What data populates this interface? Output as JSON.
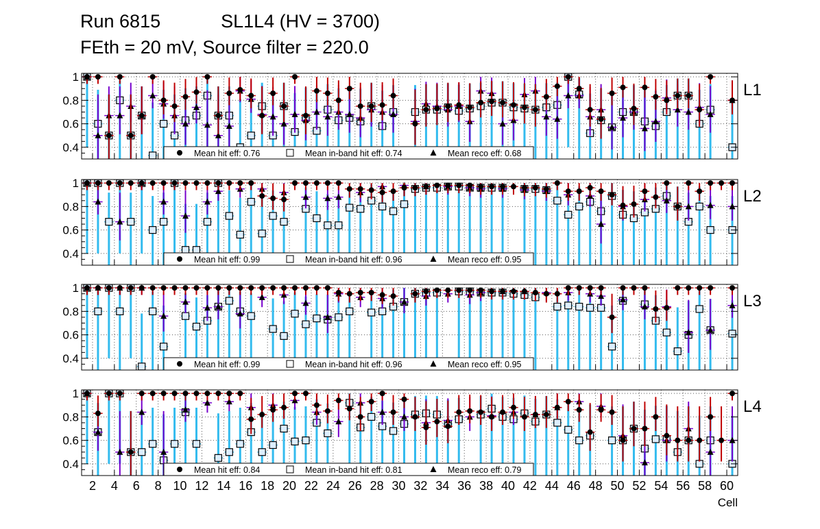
{
  "header": {
    "run": "Run 6815",
    "chamber": "SL1L4 (HV = 3700)",
    "settings": "FEth = 20 mV, Source filter = 220.0"
  },
  "colors": {
    "hit": "#c00000",
    "inband": "#33bbee",
    "reco": "#7700cc",
    "marker_fill": "#ddeeff",
    "grid": "#555555"
  },
  "legend": {
    "hit_label_prefix": "Mean hit  eff: ",
    "inband_label_prefix": "Mean in-band hit eff: ",
    "reco_label_prefix": "Mean reco eff: "
  },
  "chart_data": {
    "type": "scatter",
    "title": "Run 6815    SL1L4 (HV = 3700)",
    "xlabel": "Cell",
    "xlim": [
      1,
      61
    ],
    "ylim": [
      0.3,
      1.03
    ],
    "yticks": [
      0.4,
      0.6,
      0.8,
      1
    ],
    "xticks": [
      2,
      4,
      6,
      8,
      10,
      12,
      14,
      16,
      18,
      20,
      22,
      24,
      26,
      28,
      30,
      32,
      34,
      36,
      38,
      40,
      42,
      44,
      46,
      48,
      50,
      52,
      54,
      56,
      58,
      60
    ],
    "series_names": [
      "hit efficiency",
      "in-band hit efficiency",
      "reco efficiency"
    ],
    "panels": [
      {
        "label": "L1",
        "mean_hit": "0.76",
        "mean_inband": "0.74",
        "mean_reco": "0.68",
        "hit": [
          1,
          1,
          0.5,
          1,
          0.5,
          0.67,
          1,
          0.8,
          0.75,
          0.83,
          0.87,
          1,
          0.67,
          0.86,
          0.89,
          0.84,
          0.67,
          0.86,
          0.75,
          1,
          0.67,
          0.88,
          0.86,
          0.8,
          0.9,
          0.75,
          0.75,
          0.76,
          0.84,
          0.6,
          0.72,
          0.73,
          0.75,
          0.76,
          0.74,
          0.78,
          0.79,
          0.78,
          0.76,
          0.74,
          0.72,
          0.83,
          0.92,
          1,
          0.9,
          0.72,
          0.64,
          0.86,
          0.91,
          0.73,
          0.91,
          0.83,
          0.8,
          0.84,
          0.84,
          0.72,
          1,
          0.8
        ],
        "inband": [
          1,
          0.6,
          0.5,
          0.8,
          0.5,
          0.67,
          0.33,
          0.6,
          0.5,
          0.63,
          0.67,
          0.84,
          0.67,
          0.67,
          0.4,
          0.5,
          0.75,
          0.5,
          0.75,
          0.53,
          0.65,
          0.54,
          0.72,
          0.63,
          0.65,
          0.62,
          0.75,
          0.58,
          0.7,
          0.7,
          0.72,
          0.72,
          0.74,
          0.71,
          0.73,
          0.75,
          0.78,
          0.78,
          0.74,
          0.73,
          0.72,
          0.74,
          0.76,
          1,
          0.85,
          0.52,
          0.63,
          0.57,
          0.7,
          0.7,
          0.62,
          0.58,
          0.7,
          0.84,
          0.84,
          0.6,
          0.72,
          0.4
        ],
        "reco": [
          1,
          0.5,
          0.67,
          0.67,
          0.75,
          0.67,
          0.84,
          0.77,
          0.67,
          0.6,
          0.74,
          0.59,
          0.5,
          0.58,
          0.88,
          0.81,
          0.68,
          0.66,
          0.6,
          0.68,
          0.63,
          0.7,
          0.66,
          0.7,
          0.68,
          0.65,
          0.72,
          0.7,
          0.68,
          0.62,
          0.77,
          0.75,
          0.72,
          0.75,
          0.62,
          0.88,
          0.86,
          0.6,
          0.63,
          0.85,
          0.88,
          0.66,
          0.64,
          0.84,
          0.84,
          0.66,
          0.72,
          0.57,
          0.65,
          0.7,
          0.56,
          0.62,
          0.82,
          0.72,
          0.7,
          0.74,
          0.68,
          0.8
        ]
      },
      {
        "label": "L2",
        "mean_hit": "0.99",
        "mean_inband": "0.96",
        "mean_reco": "0.95",
        "hit": [
          1,
          1,
          1,
          1,
          1,
          1,
          1,
          1,
          1,
          1,
          1,
          1,
          1,
          1,
          1,
          1,
          0.89,
          0.87,
          0.86,
          1,
          1,
          1,
          1,
          1,
          0.95,
          0.95,
          0.94,
          0.92,
          0.93,
          0.96,
          0.96,
          0.97,
          0.98,
          0.98,
          0.98,
          0.98,
          0.97,
          0.97,
          0.97,
          0.97,
          0.96,
          0.96,
          0.95,
          1,
          0.93,
          0.93,
          0.96,
          0.93,
          0.9,
          0.81,
          0.82,
          0.93,
          0.88,
          1,
          0.8,
          1,
          0.93,
          1,
          1,
          1
        ],
        "inband": [
          1,
          1,
          0.67,
          1,
          0.67,
          1,
          0.6,
          0.67,
          1,
          0.43,
          0.43,
          0.67,
          1,
          0.72,
          0.56,
          0.84,
          0.57,
          0.72,
          0.67,
          0.78,
          0.7,
          0.64,
          0.64,
          0.79,
          0.78,
          0.85,
          0.8,
          0.76,
          0.82,
          0.95,
          0.96,
          0.96,
          0.97,
          0.97,
          0.96,
          0.96,
          0.96,
          0.96,
          0.95,
          0.95,
          0.94,
          0.85,
          0.73,
          0.8,
          0.84,
          0.76,
          0.89,
          0.73,
          0.7,
          0.75,
          0.78,
          0.89,
          0.8,
          0.67,
          0.8,
          0.6,
          0.6
        ],
        "reco": [
          1,
          0.84,
          0.67,
          1,
          0.84,
          0.72,
          0.84,
          0.93,
          0.95,
          0.95,
          0.92,
          0.88,
          0.87,
          0.88,
          0.92,
          0.97,
          0.98,
          0.97,
          0.97,
          0.96,
          0.95,
          0.95,
          0.94,
          0.93,
          0.9,
          0.89,
          0.65,
          0.8,
          0.86,
          0.85,
          0.8,
          0.81,
          0.8
        ]
      },
      {
        "label": "L3",
        "mean_hit": "0.99",
        "mean_inband": "0.96",
        "mean_reco": "0.95",
        "hit": [
          1,
          1,
          1,
          1,
          1,
          1,
          1,
          1,
          1,
          1,
          1,
          1,
          1,
          1,
          1,
          1,
          1,
          1,
          1,
          1,
          1,
          1,
          1,
          0.96,
          0.95,
          0.96,
          0.96,
          0.94,
          0.93,
          0.95,
          0.97,
          0.98,
          0.98,
          0.98,
          0.98,
          0.98,
          0.97,
          0.97,
          0.97,
          0.97,
          0.96,
          0.95,
          0.95,
          1,
          1,
          1,
          1,
          0.75,
          1,
          1,
          1,
          0.82,
          0.83,
          1,
          1,
          1,
          1,
          1
        ],
        "inband": [
          1,
          0.8,
          1,
          0.8,
          1,
          0.33,
          0.8,
          0.5,
          0.76,
          0.67,
          0.72,
          0.84,
          0.89,
          0.8,
          0.76,
          0.65,
          0.59,
          0.78,
          0.69,
          0.74,
          0.73,
          0.75,
          0.8,
          0.79,
          0.8,
          0.84,
          0.88,
          0.95,
          0.96,
          0.96,
          0.97,
          0.97,
          0.96,
          0.96,
          0.96,
          0.95,
          0.94,
          0.92,
          0.84,
          0.85,
          0.84,
          0.83,
          0.83,
          0.5,
          0.89,
          0.86,
          0.72,
          0.62,
          0.46,
          0.6,
          0.82,
          0.64,
          0.61
        ],
        "reco": [
          1,
          1,
          1,
          1,
          0.76,
          0.88,
          0.83,
          0.84,
          0.78,
          0.92,
          0.94,
          0.87,
          0.75,
          0.95,
          0.92,
          0.91,
          0.88,
          0.93,
          0.95,
          0.94,
          0.96,
          0.97,
          0.97,
          0.96,
          0.96,
          0.95,
          0.93,
          0.9,
          0.84,
          0.84,
          0.62,
          0.64,
          0.85
        ]
      },
      {
        "label": "L4",
        "mean_hit": "0.84",
        "mean_inband": "0.81",
        "mean_reco": "0.79",
        "hit": [
          1,
          0.83,
          1,
          1,
          0.5,
          1,
          1,
          1,
          1,
          1,
          1,
          1,
          1,
          1,
          1,
          0.78,
          0.82,
          0.86,
          0.88,
          1,
          1,
          0.9,
          0.85,
          0.94,
          0.87,
          0.8,
          0.93,
          1,
          0.84,
          0.95,
          0.8,
          0.71,
          0.76,
          0.72,
          0.84,
          0.85,
          0.84,
          0.8,
          0.84,
          0.88,
          0.8,
          0.82,
          0.82,
          0.88,
          0.93,
          0.86,
          0.67,
          0.86,
          0.84,
          0.6,
          0.7,
          0.7,
          0.8,
          0.64,
          0.6,
          0.6,
          0.6,
          0.8,
          0.6,
          1
        ],
        "inband": [
          1,
          0.67,
          1,
          1,
          0.5,
          0.5,
          0.57,
          0.43,
          0.57,
          0.84,
          0.57,
          0.45,
          0.5,
          0.57,
          0.67,
          0.5,
          0.56,
          0.7,
          0.59,
          0.6,
          0.75,
          0.66,
          0.92,
          0.71,
          0.8,
          0.72,
          0.68,
          0.74,
          0.82,
          0.83,
          0.82,
          0.74,
          0.78,
          0.82,
          0.87,
          0.8,
          0.78,
          0.83,
          0.76,
          0.82,
          0.75,
          0.69,
          0.6,
          0.64,
          0.6,
          0.6,
          0.7,
          0.53,
          0.61,
          0.61,
          0.5,
          0.6,
          0.4,
          0.6,
          0.4
        ],
        "reco": [
          1,
          0.67,
          0.5,
          0.84,
          0.5,
          0.86,
          0.92,
          0.93,
          0.88,
          0.9,
          0.94,
          0.84,
          0.76,
          0.92,
          0.84,
          0.8,
          0.75,
          0.77,
          0.8,
          0.81,
          0.84,
          0.82,
          0.88,
          0.93,
          0.89,
          0.64,
          0.41,
          0.6,
          0.7,
          0.5,
          0.6
        ]
      }
    ]
  }
}
